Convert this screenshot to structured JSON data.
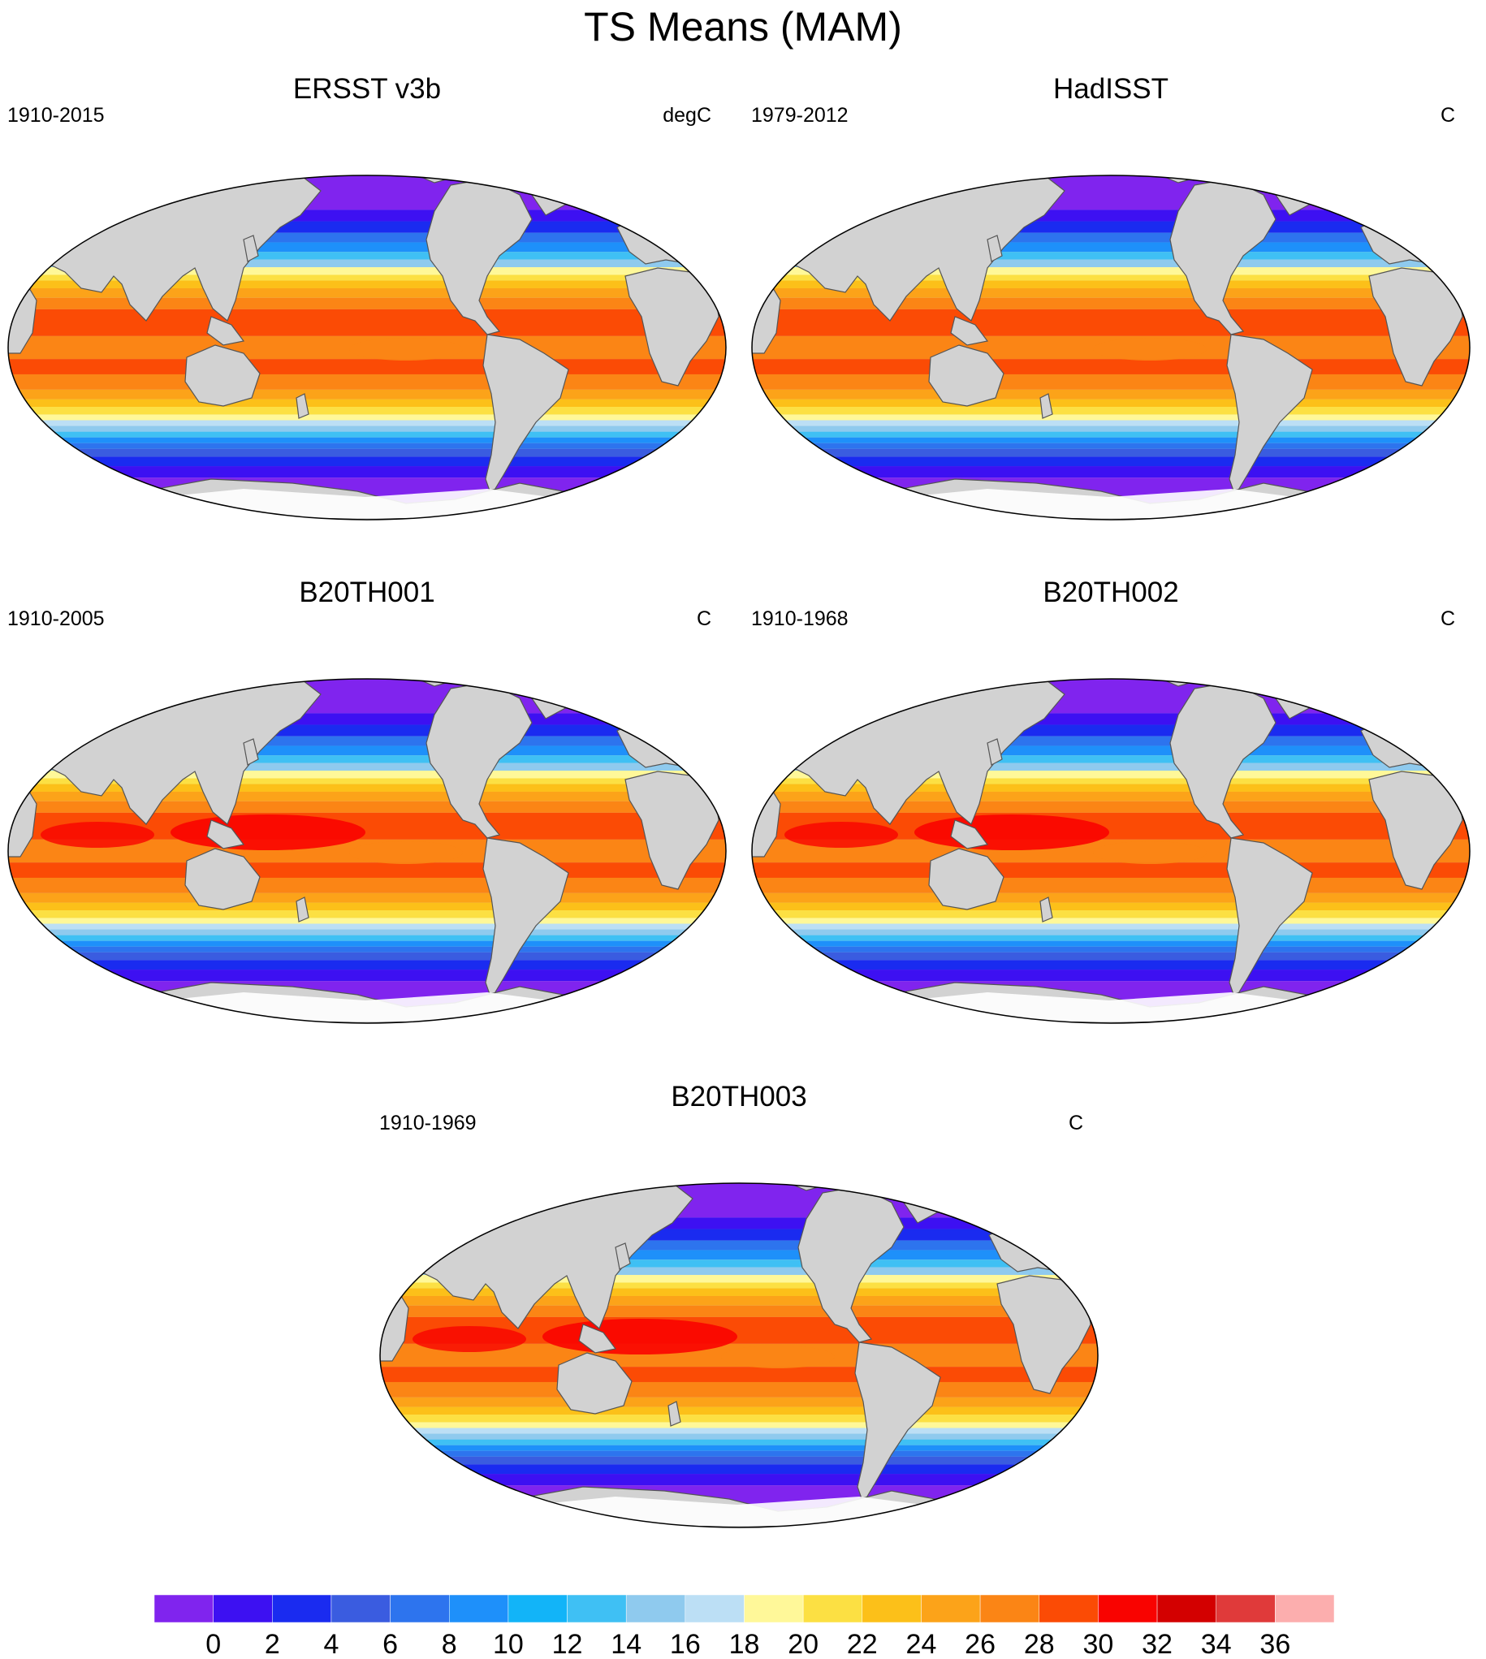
{
  "title": "TS Means (MAM)",
  "panels": [
    {
      "name": "ERSST v3b",
      "period": "1910-2015",
      "units": "degC"
    },
    {
      "name": "HadISST",
      "period": "1979-2012",
      "units": "C"
    },
    {
      "name": "B20TH001",
      "period": "1910-2005",
      "units": "C"
    },
    {
      "name": "B20TH002",
      "period": "1910-1968",
      "units": "C"
    },
    {
      "name": "B20TH003",
      "period": "1910-1969",
      "units": "C"
    }
  ],
  "colorbar": {
    "labels": [
      "0",
      "2",
      "4",
      "6",
      "8",
      "10",
      "12",
      "14",
      "16",
      "18",
      "20",
      "22",
      "24",
      "26",
      "28",
      "30",
      "32",
      "34",
      "36"
    ],
    "colors": [
      "#8024ee",
      "#3d10f2",
      "#1a2bf0",
      "#3a5ce0",
      "#2d74ee",
      "#1e90fa",
      "#12b4f8",
      "#3fc0f4",
      "#8fcaee",
      "#bcdff5",
      "#fff899",
      "#fce043",
      "#fcc019",
      "#fca319",
      "#fb8515",
      "#fb4b05",
      "#f90300",
      "#d30000",
      "#e03a3a",
      "#fcaeae"
    ]
  },
  "colors": {
    "land": "#d2d2d2",
    "coast": "#555555",
    "missing": "#ffffff"
  }
}
